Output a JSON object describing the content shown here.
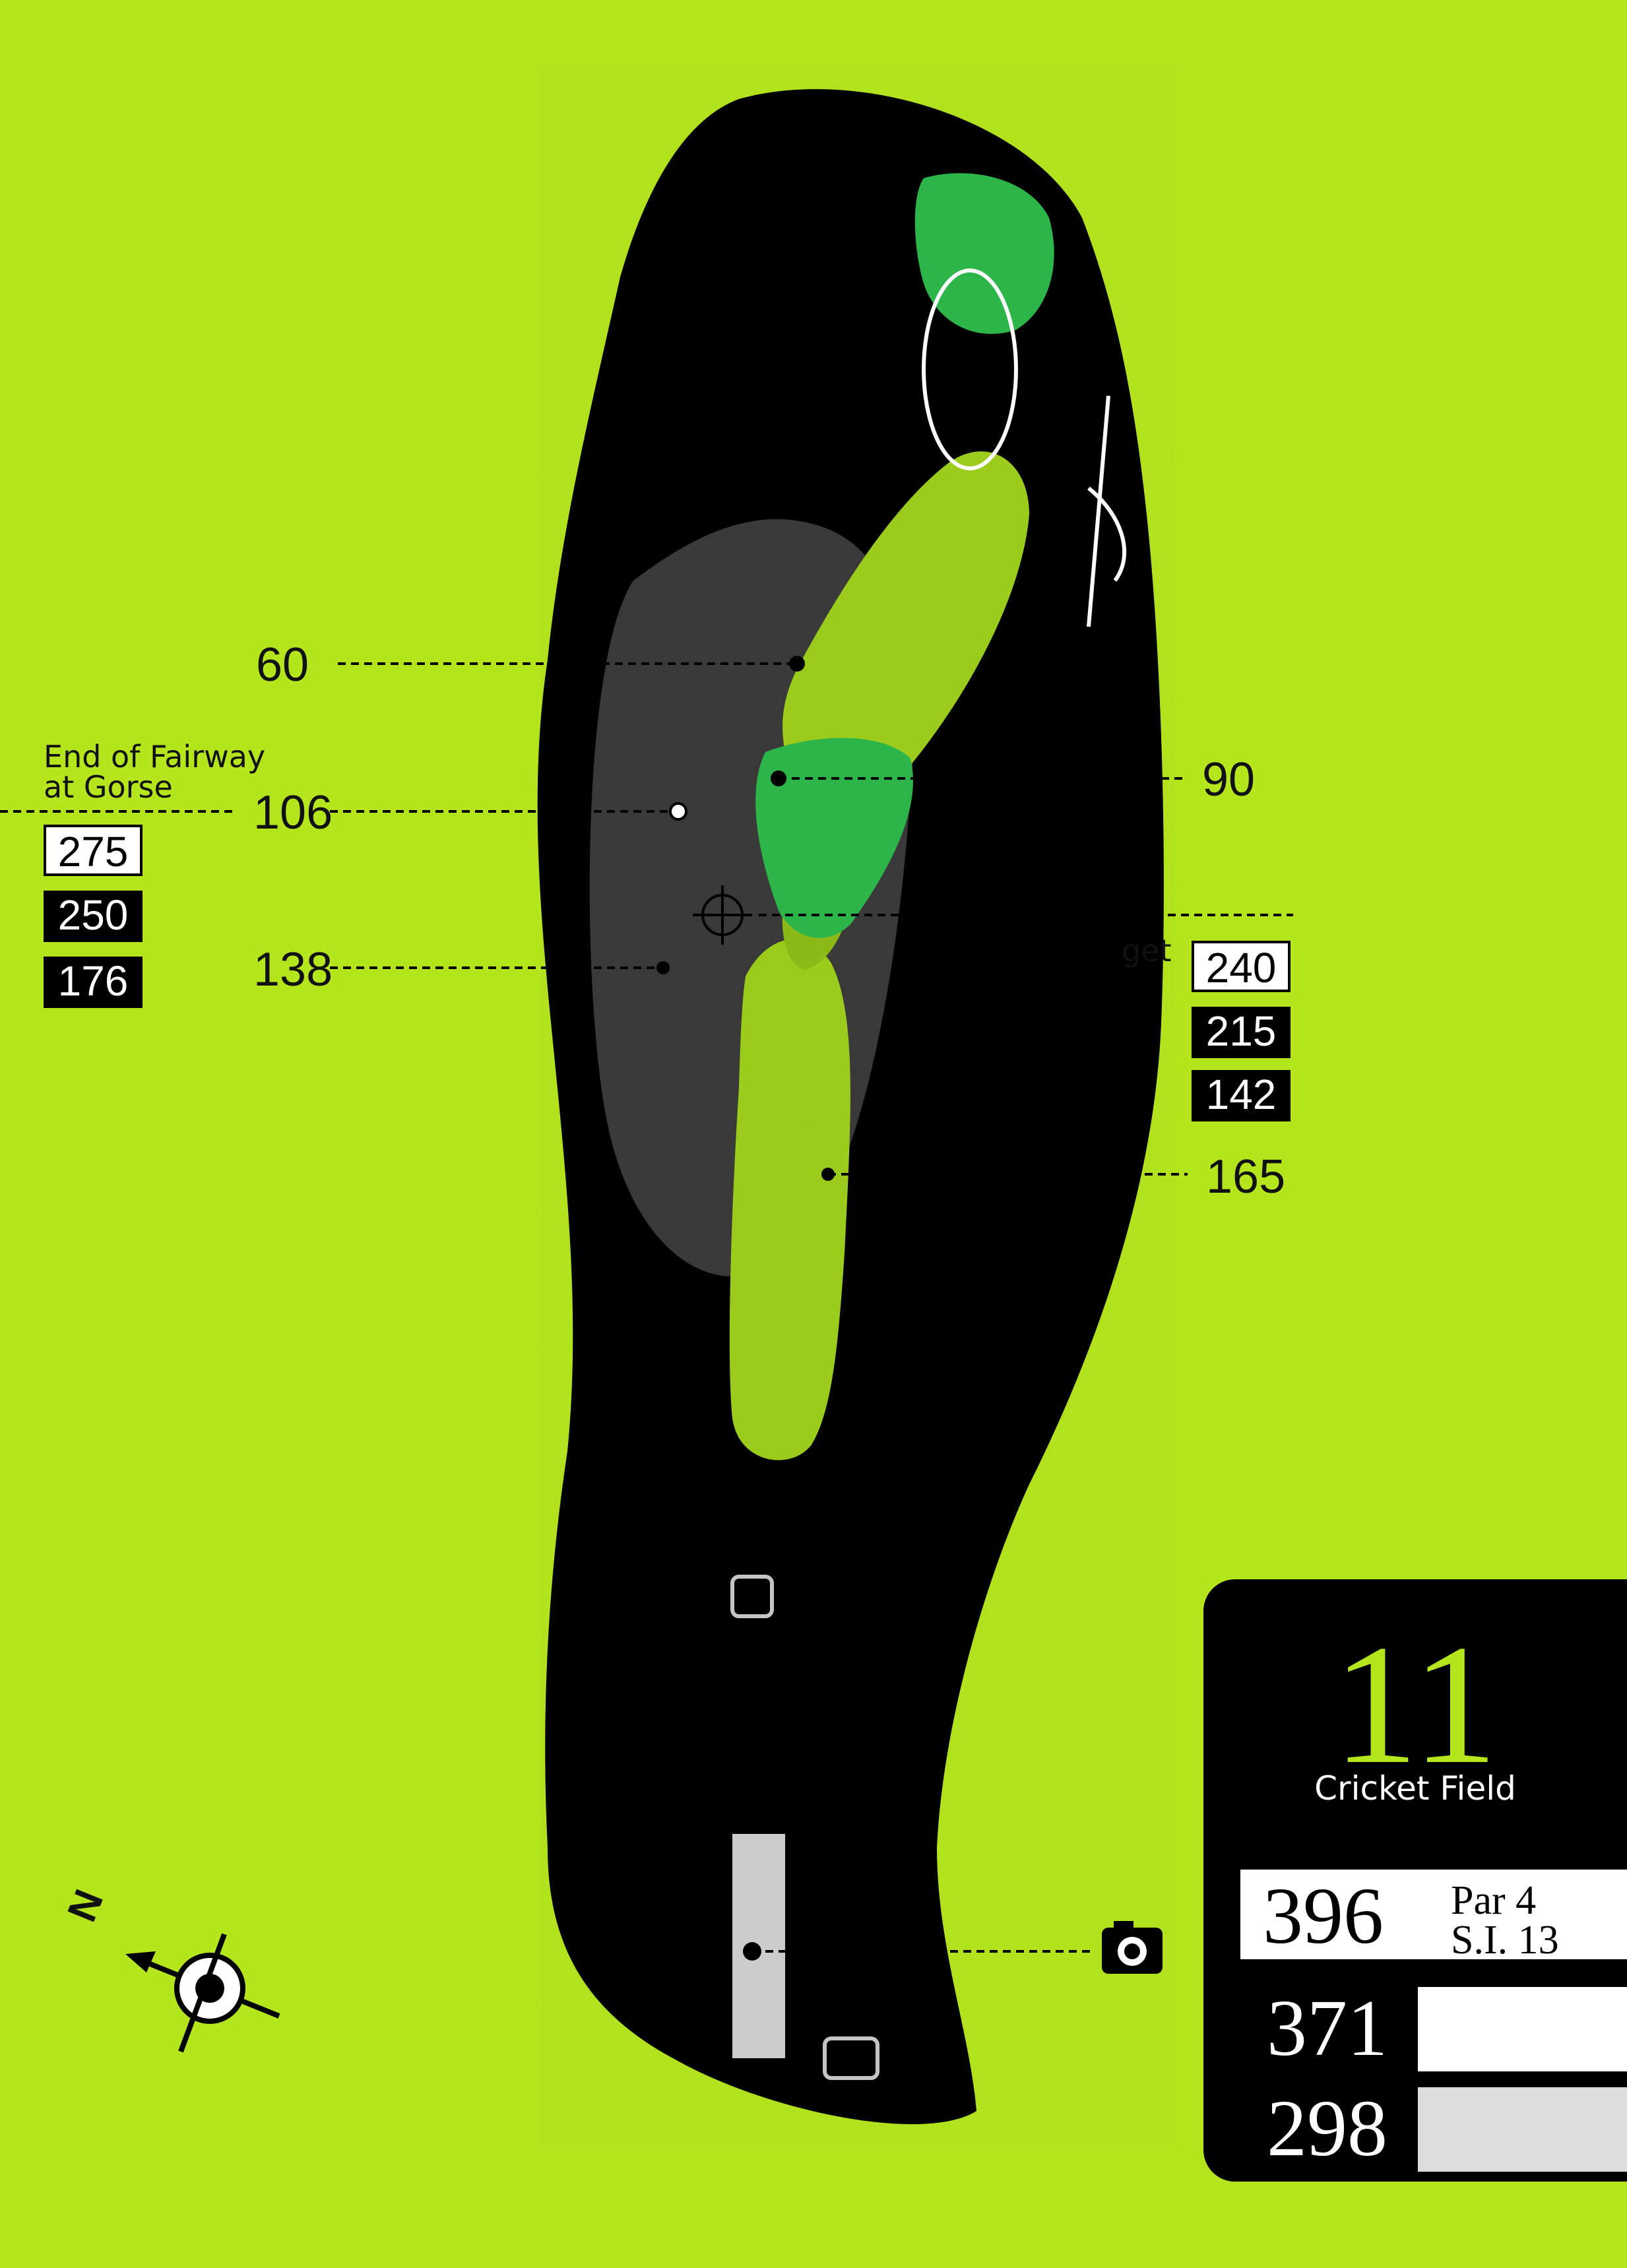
{
  "hole": {
    "number": "11",
    "name": "Cricket Field",
    "par_label": "Par 4",
    "si_label": "S.I. 13",
    "tees": [
      {
        "color": "white",
        "yards": "396"
      },
      {
        "color": "yellow",
        "yards": "371"
      },
      {
        "color": "red",
        "yards": "298"
      }
    ]
  },
  "yardage_markers": {
    "m60": "60",
    "m90": "90",
    "m106": "106",
    "m138": "138",
    "m165": "165"
  },
  "left_note": {
    "line1": "End of Fairway",
    "line2": "at Gorse",
    "distances": [
      "275",
      "250",
      "176"
    ]
  },
  "right_note": {
    "label_fragment": "get",
    "distances": [
      "240",
      "215",
      "142"
    ]
  },
  "compass": {
    "label": "N",
    "icon": "compass-north-arrow-icon"
  },
  "camera": {
    "icon": "camera-icon"
  },
  "colors": {
    "background": "#b5e61d",
    "rough": "#000000",
    "fairway": "#9ecf1c",
    "green": "#2db84a",
    "scorecard": "#000000"
  }
}
